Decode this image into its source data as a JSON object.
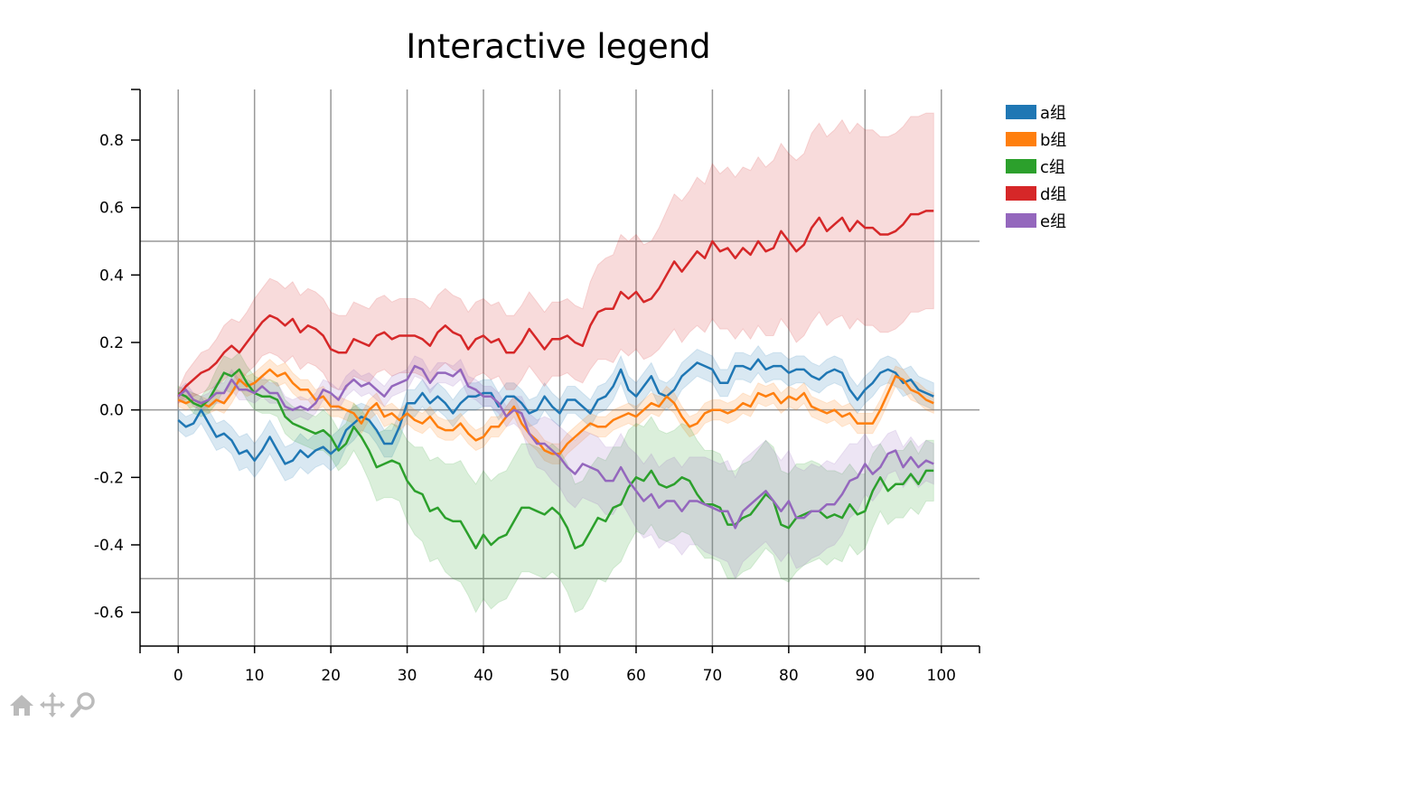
{
  "chart_data": {
    "type": "line",
    "title": "Interactive legend",
    "xlabel": "",
    "ylabel": "",
    "xlim": [
      -5,
      105
    ],
    "ylim": [
      -0.7,
      0.95
    ],
    "xticks": [
      0,
      10,
      20,
      30,
      40,
      50,
      60,
      70,
      80,
      90,
      100
    ],
    "xtick_labels": [
      "0",
      "10",
      "20",
      "30",
      "40",
      "50",
      "60",
      "70",
      "80",
      "90",
      "100"
    ],
    "yticks": [
      -0.6,
      -0.4,
      -0.2,
      0.0,
      0.2,
      0.4,
      0.6,
      0.8
    ],
    "ytick_labels": [
      "-0.6",
      "-0.4",
      "-0.2",
      "0.0",
      "0.2",
      "0.4",
      "0.6",
      "0.8"
    ],
    "grid": "vertical lines at x ticks; horizontal lines at y = -0.5, 0.0, 0.5",
    "hlines": [
      -0.5,
      0.0,
      0.5
    ],
    "legend_placement": "outside-right",
    "band_half_width_fraction": "shaded band around each line",
    "series": [
      {
        "name": "a组",
        "color": "#1f77b4",
        "x_start": 0,
        "x_step": 1,
        "values": [
          -0.03,
          -0.05,
          -0.04,
          0.0,
          -0.04,
          -0.08,
          -0.07,
          -0.09,
          -0.13,
          -0.12,
          -0.15,
          -0.12,
          -0.08,
          -0.12,
          -0.16,
          -0.15,
          -0.12,
          -0.14,
          -0.12,
          -0.11,
          -0.13,
          -0.11,
          -0.06,
          -0.04,
          -0.02,
          -0.03,
          -0.06,
          -0.1,
          -0.1,
          -0.05,
          0.02,
          0.02,
          0.05,
          0.02,
          0.04,
          0.02,
          -0.01,
          0.02,
          0.04,
          0.04,
          0.05,
          0.05,
          0.01,
          0.04,
          0.04,
          0.02,
          -0.01,
          0.0,
          0.04,
          0.01,
          -0.01,
          0.03,
          0.03,
          0.01,
          -0.01,
          0.03,
          0.04,
          0.07,
          0.12,
          0.06,
          0.04,
          0.07,
          0.1,
          0.05,
          0.04,
          0.06,
          0.1,
          0.12,
          0.14,
          0.13,
          0.12,
          0.08,
          0.08,
          0.13,
          0.13,
          0.12,
          0.15,
          0.12,
          0.13,
          0.13,
          0.11,
          0.12,
          0.12,
          0.1,
          0.09,
          0.11,
          0.12,
          0.11,
          0.06,
          0.03,
          0.06,
          0.08,
          0.11,
          0.12,
          0.11,
          0.08,
          0.09,
          0.06,
          0.05,
          0.04
        ],
        "band_width": [
          0.03,
          0.03,
          0.03,
          0.04,
          0.04,
          0.04,
          0.04,
          0.04,
          0.05,
          0.05,
          0.05,
          0.05,
          0.05,
          0.05,
          0.05,
          0.05,
          0.05,
          0.05,
          0.05,
          0.05,
          0.05,
          0.05,
          0.05,
          0.05,
          0.04,
          0.04,
          0.04,
          0.04,
          0.04,
          0.04,
          0.04,
          0.04,
          0.04,
          0.04,
          0.04,
          0.04,
          0.04,
          0.04,
          0.04,
          0.04,
          0.04,
          0.04,
          0.04,
          0.04,
          0.04,
          0.04,
          0.04,
          0.04,
          0.04,
          0.04,
          0.04,
          0.04,
          0.04,
          0.04,
          0.04,
          0.04,
          0.04,
          0.04,
          0.04,
          0.04,
          0.04,
          0.04,
          0.04,
          0.04,
          0.04,
          0.04,
          0.04,
          0.04,
          0.04,
          0.04,
          0.04,
          0.04,
          0.04,
          0.04,
          0.04,
          0.04,
          0.04,
          0.04,
          0.04,
          0.04,
          0.04,
          0.04,
          0.04,
          0.04,
          0.04,
          0.04,
          0.04,
          0.04,
          0.04,
          0.04,
          0.04,
          0.04,
          0.04,
          0.04,
          0.04,
          0.04,
          0.04,
          0.04,
          0.04,
          0.04
        ]
      },
      {
        "name": "b组",
        "color": "#ff7f0e",
        "x_start": 0,
        "x_step": 1,
        "values": [
          0.03,
          0.02,
          0.03,
          0.02,
          0.01,
          0.03,
          0.02,
          0.05,
          0.09,
          0.07,
          0.08,
          0.1,
          0.12,
          0.1,
          0.11,
          0.08,
          0.06,
          0.06,
          0.03,
          0.04,
          0.01,
          0.01,
          0.0,
          -0.01,
          -0.04,
          0.0,
          0.02,
          -0.02,
          -0.01,
          -0.03,
          -0.01,
          -0.03,
          -0.04,
          -0.02,
          -0.05,
          -0.06,
          -0.06,
          -0.04,
          -0.07,
          -0.09,
          -0.08,
          -0.05,
          -0.05,
          -0.02,
          0.01,
          -0.04,
          -0.07,
          -0.09,
          -0.12,
          -0.13,
          -0.13,
          -0.1,
          -0.08,
          -0.06,
          -0.04,
          -0.05,
          -0.05,
          -0.03,
          -0.02,
          -0.01,
          -0.02,
          0.0,
          0.02,
          0.01,
          0.04,
          0.02,
          -0.02,
          -0.05,
          -0.04,
          -0.01,
          0.0,
          0.0,
          -0.01,
          0.0,
          0.02,
          0.01,
          0.05,
          0.04,
          0.05,
          0.02,
          0.04,
          0.03,
          0.05,
          0.01,
          0.0,
          -0.01,
          0.0,
          -0.02,
          -0.01,
          -0.04,
          -0.04,
          -0.04,
          0.0,
          0.05,
          0.1,
          0.09,
          0.06,
          0.05,
          0.03,
          0.02
        ],
        "band_width": [
          0.02,
          0.02,
          0.02,
          0.02,
          0.02,
          0.03,
          0.03,
          0.03,
          0.03,
          0.03,
          0.03,
          0.03,
          0.03,
          0.03,
          0.03,
          0.03,
          0.03,
          0.03,
          0.03,
          0.03,
          0.03,
          0.03,
          0.03,
          0.03,
          0.03,
          0.03,
          0.03,
          0.03,
          0.03,
          0.03,
          0.03,
          0.03,
          0.03,
          0.03,
          0.03,
          0.03,
          0.03,
          0.03,
          0.03,
          0.03,
          0.03,
          0.03,
          0.03,
          0.03,
          0.03,
          0.03,
          0.03,
          0.03,
          0.03,
          0.03,
          0.03,
          0.03,
          0.03,
          0.03,
          0.03,
          0.03,
          0.03,
          0.03,
          0.03,
          0.03,
          0.03,
          0.03,
          0.03,
          0.03,
          0.03,
          0.03,
          0.03,
          0.03,
          0.03,
          0.03,
          0.03,
          0.03,
          0.03,
          0.03,
          0.03,
          0.03,
          0.03,
          0.03,
          0.03,
          0.03,
          0.03,
          0.03,
          0.03,
          0.03,
          0.03,
          0.03,
          0.03,
          0.03,
          0.03,
          0.03,
          0.03,
          0.03,
          0.03,
          0.03,
          0.03,
          0.03,
          0.03,
          0.03,
          0.03,
          0.03
        ]
      },
      {
        "name": "c组",
        "color": "#2ca02c",
        "x_start": 0,
        "x_step": 1,
        "values": [
          0.05,
          0.04,
          0.02,
          0.01,
          0.03,
          0.07,
          0.11,
          0.1,
          0.12,
          0.08,
          0.05,
          0.04,
          0.04,
          0.03,
          -0.02,
          -0.04,
          -0.05,
          -0.06,
          -0.07,
          -0.06,
          -0.08,
          -0.12,
          -0.1,
          -0.05,
          -0.08,
          -0.12,
          -0.17,
          -0.16,
          -0.15,
          -0.16,
          -0.21,
          -0.24,
          -0.25,
          -0.3,
          -0.29,
          -0.32,
          -0.33,
          -0.33,
          -0.37,
          -0.41,
          -0.37,
          -0.4,
          -0.38,
          -0.37,
          -0.33,
          -0.29,
          -0.29,
          -0.3,
          -0.31,
          -0.29,
          -0.31,
          -0.35,
          -0.41,
          -0.4,
          -0.36,
          -0.32,
          -0.33,
          -0.29,
          -0.28,
          -0.23,
          -0.2,
          -0.21,
          -0.18,
          -0.22,
          -0.23,
          -0.22,
          -0.2,
          -0.21,
          -0.25,
          -0.28,
          -0.28,
          -0.29,
          -0.34,
          -0.34,
          -0.32,
          -0.31,
          -0.28,
          -0.25,
          -0.27,
          -0.34,
          -0.35,
          -0.32,
          -0.31,
          -0.3,
          -0.3,
          -0.32,
          -0.31,
          -0.32,
          -0.28,
          -0.31,
          -0.3,
          -0.24,
          -0.2,
          -0.24,
          -0.22,
          -0.22,
          -0.19,
          -0.22,
          -0.18,
          -0.18
        ],
        "band_width": [
          0.02,
          0.02,
          0.03,
          0.03,
          0.04,
          0.05,
          0.05,
          0.05,
          0.05,
          0.05,
          0.05,
          0.05,
          0.05,
          0.05,
          0.05,
          0.05,
          0.05,
          0.05,
          0.05,
          0.06,
          0.06,
          0.06,
          0.06,
          0.07,
          0.08,
          0.09,
          0.1,
          0.1,
          0.11,
          0.11,
          0.12,
          0.13,
          0.14,
          0.15,
          0.15,
          0.16,
          0.17,
          0.18,
          0.18,
          0.19,
          0.19,
          0.19,
          0.19,
          0.19,
          0.19,
          0.19,
          0.19,
          0.19,
          0.19,
          0.19,
          0.19,
          0.19,
          0.19,
          0.19,
          0.19,
          0.18,
          0.18,
          0.18,
          0.17,
          0.17,
          0.16,
          0.16,
          0.16,
          0.16,
          0.16,
          0.16,
          0.16,
          0.16,
          0.16,
          0.16,
          0.16,
          0.16,
          0.16,
          0.16,
          0.16,
          0.16,
          0.16,
          0.16,
          0.16,
          0.16,
          0.16,
          0.16,
          0.15,
          0.15,
          0.14,
          0.14,
          0.13,
          0.13,
          0.12,
          0.12,
          0.11,
          0.11,
          0.1,
          0.1,
          0.1,
          0.1,
          0.1,
          0.09,
          0.09,
          0.09
        ]
      },
      {
        "name": "d组",
        "color": "#d62728",
        "x_start": 0,
        "x_step": 1,
        "values": [
          0.04,
          0.07,
          0.09,
          0.11,
          0.12,
          0.14,
          0.17,
          0.19,
          0.17,
          0.2,
          0.23,
          0.26,
          0.28,
          0.27,
          0.25,
          0.27,
          0.23,
          0.25,
          0.24,
          0.22,
          0.18,
          0.17,
          0.17,
          0.21,
          0.2,
          0.19,
          0.22,
          0.23,
          0.21,
          0.22,
          0.22,
          0.22,
          0.21,
          0.19,
          0.23,
          0.25,
          0.23,
          0.22,
          0.18,
          0.21,
          0.22,
          0.2,
          0.21,
          0.17,
          0.17,
          0.2,
          0.24,
          0.21,
          0.18,
          0.21,
          0.21,
          0.22,
          0.2,
          0.19,
          0.25,
          0.29,
          0.3,
          0.3,
          0.35,
          0.33,
          0.35,
          0.32,
          0.33,
          0.36,
          0.4,
          0.44,
          0.41,
          0.44,
          0.47,
          0.45,
          0.5,
          0.47,
          0.48,
          0.45,
          0.48,
          0.46,
          0.5,
          0.47,
          0.48,
          0.53,
          0.5,
          0.47,
          0.49,
          0.54,
          0.57,
          0.53,
          0.55,
          0.57,
          0.53,
          0.56,
          0.54,
          0.54,
          0.52,
          0.52,
          0.53,
          0.55,
          0.58,
          0.58,
          0.59,
          0.59
        ],
        "band_width": [
          0.02,
          0.04,
          0.05,
          0.06,
          0.06,
          0.07,
          0.08,
          0.08,
          0.09,
          0.09,
          0.1,
          0.1,
          0.11,
          0.11,
          0.11,
          0.11,
          0.11,
          0.11,
          0.11,
          0.11,
          0.11,
          0.11,
          0.11,
          0.11,
          0.11,
          0.11,
          0.11,
          0.11,
          0.11,
          0.11,
          0.11,
          0.11,
          0.11,
          0.11,
          0.11,
          0.11,
          0.11,
          0.11,
          0.11,
          0.11,
          0.11,
          0.11,
          0.11,
          0.11,
          0.11,
          0.11,
          0.11,
          0.11,
          0.11,
          0.11,
          0.11,
          0.11,
          0.11,
          0.11,
          0.13,
          0.14,
          0.15,
          0.16,
          0.17,
          0.17,
          0.17,
          0.17,
          0.17,
          0.18,
          0.19,
          0.2,
          0.21,
          0.21,
          0.22,
          0.22,
          0.23,
          0.23,
          0.24,
          0.24,
          0.24,
          0.25,
          0.25,
          0.25,
          0.26,
          0.26,
          0.26,
          0.27,
          0.27,
          0.28,
          0.28,
          0.28,
          0.28,
          0.29,
          0.29,
          0.29,
          0.29,
          0.29,
          0.29,
          0.29,
          0.29,
          0.29,
          0.29,
          0.29,
          0.29,
          0.29
        ]
      },
      {
        "name": "e组",
        "color": "#9467bd",
        "x_start": 0,
        "x_step": 1,
        "values": [
          0.04,
          0.06,
          0.03,
          0.02,
          0.03,
          0.05,
          0.05,
          0.09,
          0.06,
          0.06,
          0.05,
          0.07,
          0.05,
          0.05,
          0.01,
          0.0,
          0.01,
          0.0,
          0.02,
          0.06,
          0.05,
          0.03,
          0.07,
          0.09,
          0.07,
          0.08,
          0.06,
          0.04,
          0.07,
          0.08,
          0.09,
          0.13,
          0.12,
          0.08,
          0.11,
          0.11,
          0.1,
          0.12,
          0.07,
          0.06,
          0.04,
          0.04,
          0.02,
          -0.02,
          0.0,
          -0.01,
          -0.07,
          -0.1,
          -0.1,
          -0.12,
          -0.14,
          -0.17,
          -0.19,
          -0.16,
          -0.17,
          -0.18,
          -0.21,
          -0.21,
          -0.17,
          -0.21,
          -0.24,
          -0.27,
          -0.25,
          -0.29,
          -0.27,
          -0.27,
          -0.3,
          -0.27,
          -0.27,
          -0.28,
          -0.29,
          -0.3,
          -0.3,
          -0.35,
          -0.3,
          -0.28,
          -0.26,
          -0.24,
          -0.27,
          -0.3,
          -0.27,
          -0.32,
          -0.32,
          -0.3,
          -0.3,
          -0.28,
          -0.28,
          -0.25,
          -0.21,
          -0.2,
          -0.16,
          -0.19,
          -0.17,
          -0.13,
          -0.12,
          -0.17,
          -0.14,
          -0.17,
          -0.15,
          -0.16
        ],
        "band_width": [
          0.02,
          0.02,
          0.02,
          0.02,
          0.02,
          0.03,
          0.03,
          0.03,
          0.03,
          0.03,
          0.03,
          0.03,
          0.03,
          0.03,
          0.03,
          0.03,
          0.03,
          0.03,
          0.03,
          0.03,
          0.03,
          0.03,
          0.03,
          0.03,
          0.03,
          0.03,
          0.03,
          0.03,
          0.03,
          0.03,
          0.03,
          0.03,
          0.03,
          0.03,
          0.03,
          0.03,
          0.03,
          0.03,
          0.03,
          0.03,
          0.03,
          0.03,
          0.03,
          0.03,
          0.04,
          0.05,
          0.06,
          0.07,
          0.08,
          0.09,
          0.09,
          0.1,
          0.1,
          0.1,
          0.1,
          0.1,
          0.1,
          0.1,
          0.1,
          0.1,
          0.11,
          0.11,
          0.12,
          0.12,
          0.12,
          0.13,
          0.13,
          0.13,
          0.13,
          0.14,
          0.14,
          0.14,
          0.15,
          0.15,
          0.15,
          0.15,
          0.15,
          0.15,
          0.15,
          0.15,
          0.15,
          0.15,
          0.14,
          0.14,
          0.13,
          0.13,
          0.12,
          0.12,
          0.11,
          0.1,
          0.09,
          0.08,
          0.07,
          0.06,
          0.06,
          0.06,
          0.06,
          0.06,
          0.06,
          0.06
        ]
      }
    ]
  },
  "toolbar": {
    "icons": [
      "home-icon",
      "move-icon",
      "zoom-icon"
    ]
  }
}
